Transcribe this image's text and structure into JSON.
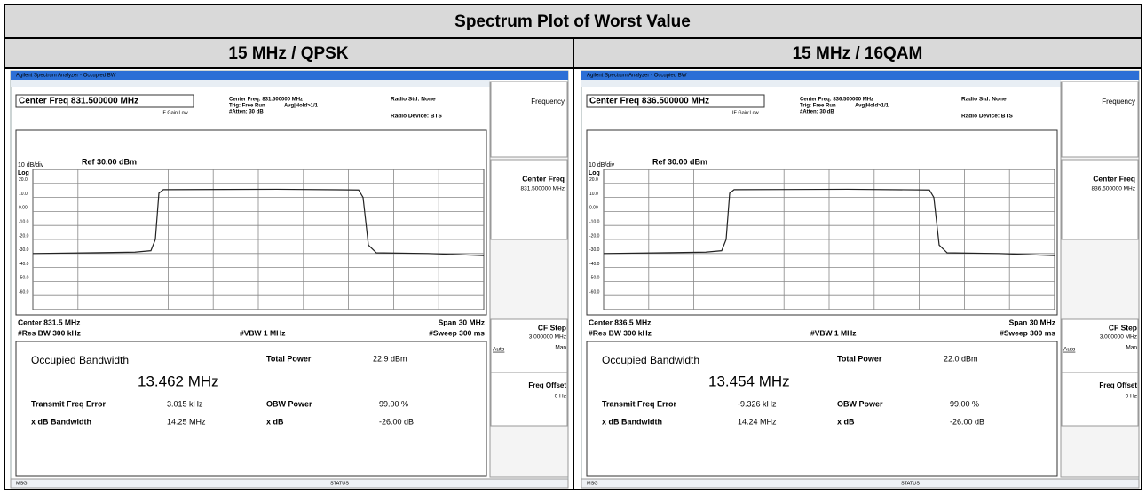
{
  "title": "Spectrum Plot of Worst Value",
  "columns": [
    {
      "header": "15 MHz / QPSK",
      "screen": {
        "window_title": "Agilent Spectrum Analyzer - Occupied BW",
        "center_freq_box": "Center Freq 831.500000 MHz",
        "info": [
          "Center Freq: 831.500000 MHz",
          "Trig: Free Run",
          "#Atten: 30 dB"
        ],
        "avg": "Avg|Hold>1/1",
        "if_gain": "IF Gain:Low",
        "radio_std": "Radio Std: None",
        "radio_device": "Radio Device: BTS",
        "scale": "10 dB/div",
        "ref": "Ref 30.00 dBm",
        "log": "Log",
        "y_labels": [
          "20.0",
          "10.0",
          "0.00",
          "-10.0",
          "-20.0",
          "-30.0",
          "-40.0",
          "-50.0",
          "-60.0"
        ],
        "center": "Center 831.5 MHz",
        "rbw": "#Res BW 300 kHz",
        "vbw": "#VBW 1 MHz",
        "span": "Span 30 MHz",
        "sweep": "#Sweep 300 ms",
        "results": {
          "obw_label": "Occupied Bandwidth",
          "obw": "13.462 MHz",
          "total_power_label": "Total Power",
          "total_power": "22.9 dBm",
          "tfe_label": "Transmit Freq Error",
          "tfe": "3.015 kHz",
          "obw_power_label": "OBW Power",
          "obw_power": "99.00 %",
          "xdb_bw_label": "x dB Bandwidth",
          "xdb_bw": "14.25 MHz",
          "xdb_label": "x dB",
          "xdb": "-26.00 dB"
        },
        "softkeys": {
          "frequency": "Frequency",
          "center_freq": "Center Freq",
          "center_freq_value": "831.500000 MHz",
          "cf_step": "CF Step",
          "cf_step_value": "3.000000 MHz",
          "auto": "Auto",
          "man": "Man",
          "freq_offset": "Freq Offset",
          "freq_offset_value": "0 Hz"
        },
        "msg": "MSG",
        "status": "STATUS"
      }
    },
    {
      "header": "15 MHz / 16QAM",
      "screen": {
        "window_title": "Agilent Spectrum Analyzer - Occupied BW",
        "center_freq_box": "Center Freq 836.500000 MHz",
        "info": [
          "Center Freq: 836.500000 MHz",
          "Trig: Free Run",
          "#Atten: 30 dB"
        ],
        "avg": "Avg|Hold>1/1",
        "if_gain": "IF Gain:Low",
        "radio_std": "Radio Std: None",
        "radio_device": "Radio Device: BTS",
        "scale": "10 dB/div",
        "ref": "Ref 30.00 dBm",
        "log": "Log",
        "y_labels": [
          "20.0",
          "10.0",
          "0.00",
          "-10.0",
          "-20.0",
          "-30.0",
          "-40.0",
          "-50.0",
          "-60.0"
        ],
        "center": "Center 836.5 MHz",
        "rbw": "#Res BW 300 kHz",
        "vbw": "#VBW 1 MHz",
        "span": "Span 30 MHz",
        "sweep": "#Sweep 300 ms",
        "results": {
          "obw_label": "Occupied Bandwidth",
          "obw": "13.454 MHz",
          "total_power_label": "Total Power",
          "total_power": "22.0 dBm",
          "tfe_label": "Transmit Freq Error",
          "tfe": "-9.326 kHz",
          "obw_power_label": "OBW Power",
          "obw_power": "99.00 %",
          "xdb_bw_label": "x dB Bandwidth",
          "xdb_bw": "14.24 MHz",
          "xdb_label": "x dB",
          "xdb": "-26.00 dB"
        },
        "softkeys": {
          "frequency": "Frequency",
          "center_freq": "Center Freq",
          "center_freq_value": "836.500000 MHz",
          "cf_step": "CF Step",
          "cf_step_value": "3.000000 MHz",
          "auto": "Auto",
          "man": "Man",
          "freq_offset": "Freq Offset",
          "freq_offset_value": "0 Hz"
        },
        "msg": "MSG",
        "status": "STATUS"
      }
    }
  ]
}
